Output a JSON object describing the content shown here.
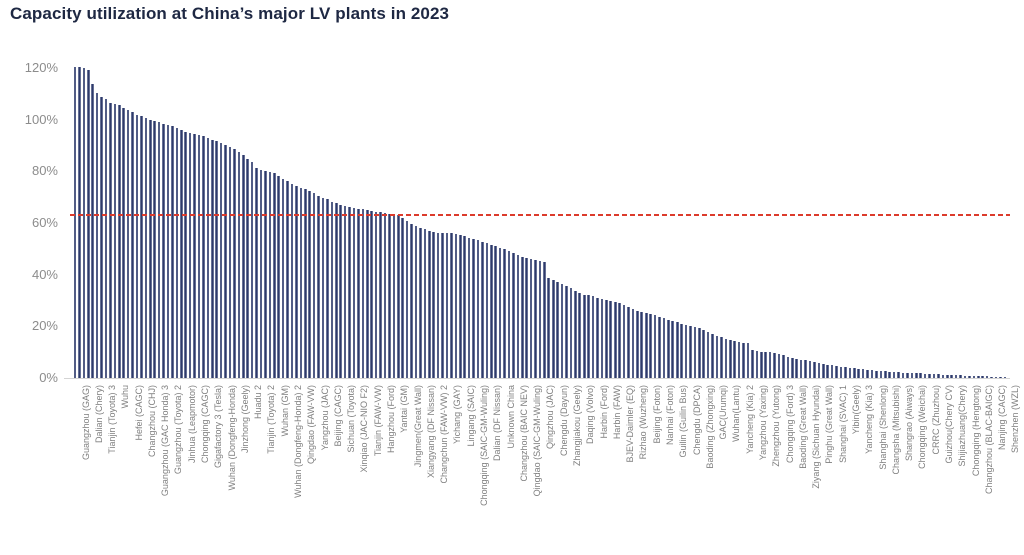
{
  "chart_data": {
    "type": "bar",
    "title": "Capacity utilization at China’s major LV plants in 2023",
    "xlabel": "",
    "ylabel": "",
    "ylim": [
      0,
      120
    ],
    "y_tick_labels": [
      "0%",
      "20%",
      "40%",
      "60%",
      "80%",
      "100%",
      "120%"
    ],
    "grid": false,
    "legend": false,
    "bar_color": "#2e3a6a",
    "axis_color": "#d4d4d4",
    "tick_label_color": "#8c8c8c",
    "title_color": "#1e2843",
    "reference_line": {
      "value": 63,
      "color": "#dc3b2c",
      "style": "dashed"
    },
    "x_label_interval": 3,
    "x_labels_every_3rd": [
      "Guangzhou (GAG)",
      "Dalian (Chery)",
      "Tianjin (Toyota) 3",
      "Wuhu",
      "Hefei (CAGC)",
      "Changzhou (CHJ)",
      "Guangzhou (GAC Honda) 3",
      "Guangzhou (Toyota) 2",
      "Jinhua (Leapmotor)",
      "Chongqing (CAGC)",
      "Gigafactory 3 (Tesla)",
      "Wuhan (Dongfeng-Honda)",
      "Jinzhong (Geely)",
      "Huadu 2",
      "Tianjin (Toyota) 2",
      "Wuhan (GM)",
      "Wuhan (Dongfeng-Honda) 2",
      "Qingdao (FAW-VW)",
      "Yangzhou (JAC)",
      "Beijing (CAGC)",
      "Sichuan (Toyota)",
      "Xinqiao (JAC-NIO F2)",
      "Tianjin (FAW-VW)",
      "Hangzhou (Ford)",
      "Yantai (GM)",
      "Jingmen(Great Wall)",
      "Xiangyang (DF Nissan)",
      "Changchun (FAW-VW) 2",
      "Yichang (GAY)",
      "Lingang (SAIC)",
      "Chongqing (SAIC-GM-Wuling)",
      "Dalian (DF Nissan)",
      "Unknown China",
      "Changzhou (BAIC NEV)",
      "Qingdao (SAIC-GM-Wuling)",
      "Qingzhou (JAC)",
      "Chengdu (Dayun)",
      "Zhangjiakou (Geely)",
      "Daqing (Volvo)",
      "Harbin (Ford)",
      "Harbin (FAW)",
      "BJEV-Daimler (EQ)",
      "Rizhao (Wuzheng)",
      "Beijing (Foton)",
      "Nanhai (Foton)",
      "Guilin (Guilin Bus)",
      "Chengdu (DPCA)",
      "Baoding (Zhongxing)",
      "GAC(Urumqi)",
      "Wuhan(Lantu)",
      "Yancheng (Kia) 2",
      "Yangzhou (Yaxing)",
      "Zhengzhou (Yutong)",
      "Chongqing (Ford) 3",
      "Baoding (Great Wall)",
      "Ziyang (Sichuan Hyundai)",
      "Pinghu (Great Wall)",
      "Shanghai (SVAC) 1",
      "Yibin(Geely)",
      "Yancheng (Kia) 3",
      "Shanghai (Shenlong)",
      "Changsha (Mitsubishi)",
      "Shangrao (Aiways)",
      "Chongqing (Weichai)",
      "CRRC (Zhuzhou)",
      "Guizhou(Chery CV)",
      "Shijiazhuang(Chery)",
      "Chongqing (Hengtong)",
      "Changzhou (BLAC-BAIGC)",
      "Nanjing (CAGC)",
      "Shenzhen (WZL)"
    ],
    "values": [
      120.5,
      120.3,
      120.2,
      119.4,
      113.9,
      110.5,
      108.9,
      108,
      106.4,
      106,
      105.5,
      104.6,
      103.8,
      102.9,
      102,
      101.3,
      100.7,
      100,
      99.5,
      99,
      98.5,
      98,
      97.4,
      96.8,
      96.1,
      95.4,
      94.8,
      94.3,
      93.9,
      93.6,
      93,
      92.3,
      91.7,
      91,
      90.2,
      89.5,
      88.5,
      87.5,
      86.4,
      84.7,
      83.5,
      81.4,
      80.7,
      80.1,
      79.8,
      79.4,
      78.3,
      77,
      76.1,
      75,
      74.2,
      73.7,
      73,
      72.3,
      71.7,
      70.6,
      69.8,
      69.3,
      68.3,
      67.6,
      67.1,
      66.7,
      66.3,
      66,
      65.6,
      65.3,
      65,
      64.7,
      64.4,
      64.1,
      63.8,
      63.5,
      63.3,
      63,
      62.1,
      60.9,
      59.8,
      58.9,
      58.1,
      57.5,
      57,
      56.5,
      56.3,
      56.2,
      56.1,
      56,
      55.9,
      55.4,
      54.8,
      54.2,
      53.8,
      53.3,
      52.8,
      52.2,
      51.6,
      51,
      50.5,
      49.9,
      49.3,
      48.5,
      47.8,
      47,
      46.5,
      46,
      45.6,
      45.2,
      45,
      38.6,
      37.8,
      37.1,
      36.5,
      35.6,
      34.7,
      33.8,
      32.9,
      32.3,
      32,
      31.7,
      31.1,
      30.6,
      30.3,
      30,
      29.5,
      29,
      28.3,
      27.4,
      26.6,
      26,
      25.4,
      25.1,
      24.9,
      24.4,
      23.7,
      23.2,
      22.6,
      22.1,
      21.5,
      21,
      20.6,
      20.3,
      19.8,
      19.3,
      18.6,
      17.8,
      16.9,
      16.3,
      15.7,
      15.1,
      14.7,
      14.3,
      13.9,
      13.6,
      13.4,
      10.8,
      10.6,
      10.2,
      10.1,
      10,
      9.7,
      9.3,
      8.8,
      8.2,
      7.8,
      7.4,
      7.1,
      6.8,
      6.4,
      6.1,
      5.8,
      5.5,
      5.2,
      4.9,
      4.6,
      4.3,
      4.1,
      3.9,
      3.7,
      3.5,
      3.4,
      3.2,
      3.1,
      2.9,
      2.7,
      2.6,
      2.5,
      2.3,
      2.2,
      2.1,
      2,
      1.9,
      1.8,
      1.8,
      1.7,
      1.6,
      1.5,
      1.4,
      1.3,
      1.2,
      1.1,
      1,
      1,
      0.9,
      0.8,
      0.7,
      0.7,
      0.6,
      0.6,
      0.5,
      0.5,
      0.4,
      0.4
    ]
  }
}
